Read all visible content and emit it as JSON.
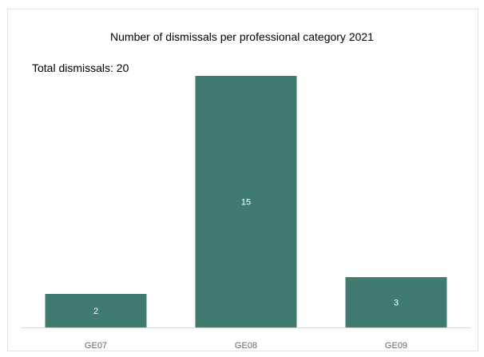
{
  "chart_data": {
    "type": "bar",
    "title": "Number of dismissals per professional category 2021",
    "subtitle": "Total dismissals: 20",
    "categories": [
      "GE07",
      "GE08",
      "GE09"
    ],
    "values": [
      2,
      15,
      3
    ],
    "ylim": [
      0,
      15
    ],
    "grid": false,
    "legend": "none",
    "bar_color": "#3f7b6f",
    "value_label_color": "#ffffff"
  }
}
